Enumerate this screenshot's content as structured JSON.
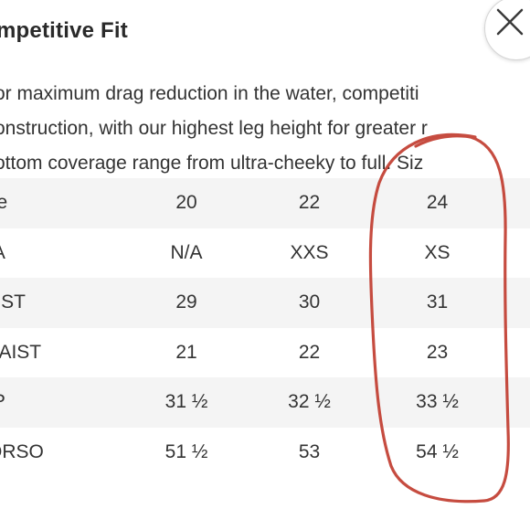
{
  "title": "mpetitive Fit",
  "description": [
    "or maximum drag reduction in the water, competiti",
    "onstruction, with our highest leg height for greater r",
    "ottom coverage range from ultra-cheeky to full. Siz"
  ],
  "table": {
    "rows": [
      {
        "label": "ze",
        "values": [
          "20",
          "22",
          "24"
        ]
      },
      {
        "label": "/A",
        "values": [
          "N/A",
          "XXS",
          "XS"
        ]
      },
      {
        "label": "UST",
        "values": [
          "29",
          "30",
          "31"
        ]
      },
      {
        "label": "VAIST",
        "values": [
          "21",
          "22",
          "23"
        ]
      },
      {
        "label": "IP",
        "values": [
          "31 ½",
          "32 ½",
          "33 ½"
        ]
      },
      {
        "label": "ORSO",
        "values": [
          "51 ½",
          "53",
          "54 ½"
        ]
      }
    ]
  },
  "close_button": {
    "icon": "close-icon"
  },
  "annotation": {
    "color": "#c0392b",
    "target_column": "24"
  },
  "colors": {
    "row_shade": "#f4f4f4",
    "text": "#333333"
  }
}
